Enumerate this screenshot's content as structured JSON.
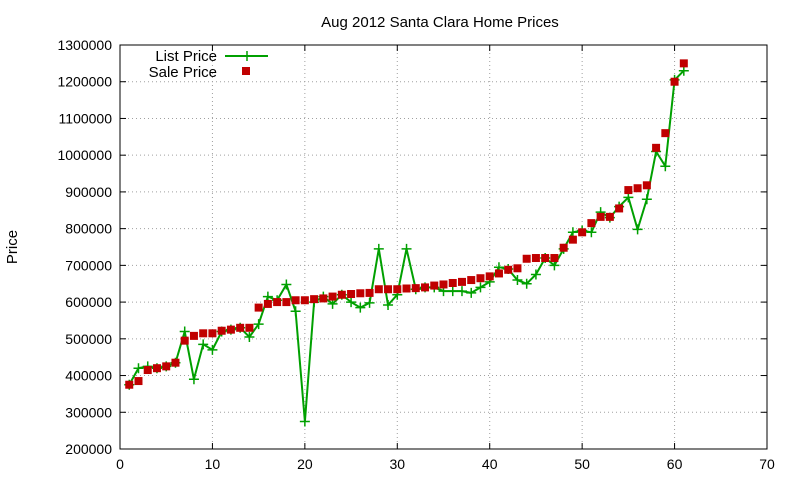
{
  "chart_data": {
    "type": "line",
    "title": "Aug 2012 Santa Clara Home Prices",
    "xlabel": "",
    "ylabel": "Price",
    "xlim": [
      0,
      70
    ],
    "ylim": [
      200000,
      1300000
    ],
    "x_ticks": [
      0,
      10,
      20,
      30,
      40,
      50,
      60,
      70
    ],
    "y_ticks": [
      200000,
      300000,
      400000,
      500000,
      600000,
      700000,
      800000,
      900000,
      1000000,
      1100000,
      1200000,
      1300000
    ],
    "grid": true,
    "legend_position": "top-left",
    "series": [
      {
        "name": "List Price",
        "style": "line-plus",
        "color": "#00a000",
        "x": [
          1,
          2,
          3,
          4,
          5,
          6,
          7,
          8,
          9,
          10,
          11,
          12,
          13,
          14,
          15,
          16,
          17,
          18,
          19,
          20,
          21,
          22,
          23,
          24,
          25,
          26,
          27,
          28,
          29,
          30,
          31,
          32,
          33,
          34,
          35,
          36,
          37,
          38,
          39,
          40,
          41,
          42,
          43,
          44,
          45,
          46,
          47,
          48,
          49,
          50,
          51,
          52,
          53,
          54,
          55,
          56,
          57,
          58,
          59,
          60,
          61
        ],
        "values": [
          375000,
          420000,
          425000,
          420000,
          425000,
          435000,
          520000,
          390000,
          485000,
          470000,
          520000,
          525000,
          530000,
          505000,
          540000,
          615000,
          605000,
          648000,
          575000,
          275000,
          600000,
          615000,
          595000,
          620000,
          600000,
          585000,
          598000,
          745000,
          592000,
          620000,
          745000,
          635000,
          640000,
          640000,
          630000,
          630000,
          630000,
          625000,
          640000,
          655000,
          695000,
          690000,
          660000,
          650000,
          675000,
          720000,
          700000,
          745000,
          790000,
          795000,
          790000,
          845000,
          830000,
          860000,
          885000,
          798000,
          880000,
          1010000,
          970000,
          1205000,
          1230000
        ]
      },
      {
        "name": "Sale Price",
        "style": "square",
        "color": "#c00000",
        "x": [
          1,
          2,
          3,
          4,
          5,
          6,
          7,
          8,
          9,
          10,
          11,
          12,
          13,
          14,
          15,
          16,
          17,
          18,
          19,
          20,
          21,
          22,
          23,
          24,
          25,
          26,
          27,
          28,
          29,
          30,
          31,
          32,
          33,
          34,
          35,
          36,
          37,
          38,
          39,
          40,
          41,
          42,
          43,
          44,
          45,
          46,
          47,
          48,
          49,
          50,
          51,
          52,
          53,
          54,
          55,
          56,
          57,
          58,
          59,
          60,
          61
        ],
        "values": [
          375000,
          385000,
          415000,
          420000,
          425000,
          435000,
          495000,
          508000,
          515000,
          515000,
          522000,
          525000,
          530000,
          530000,
          585000,
          595000,
          600000,
          600000,
          605000,
          605000,
          608000,
          610000,
          615000,
          620000,
          622000,
          624000,
          625000,
          635000,
          635000,
          635000,
          637000,
          638000,
          640000,
          645000,
          648000,
          652000,
          655000,
          660000,
          665000,
          670000,
          678000,
          688000,
          692000,
          718000,
          720000,
          720000,
          720000,
          748000,
          770000,
          790000,
          815000,
          832000,
          832000,
          855000,
          905000,
          910000,
          918000,
          1020000,
          1060000,
          1200000,
          1250000
        ]
      }
    ]
  }
}
